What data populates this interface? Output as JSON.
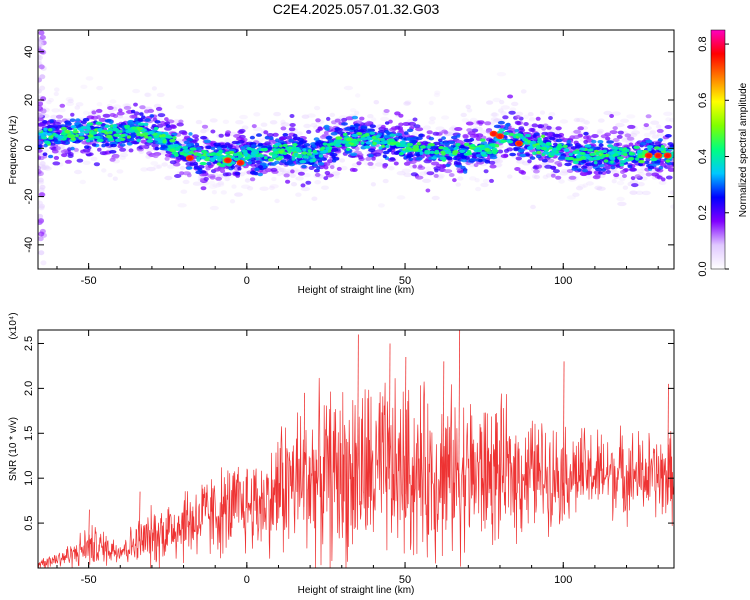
{
  "title": "C2E4.2025.057.01.32.G03",
  "chart_data": [
    {
      "type": "heatmap",
      "xlabel": "Height of straight line (km)",
      "ylabel": "Frequency (Hz)",
      "xlim": [
        -66,
        135
      ],
      "ylim": [
        -50,
        49
      ],
      "xticks": [
        -50,
        0,
        50,
        100
      ],
      "yticks": [
        40,
        20,
        0,
        -20,
        -40
      ],
      "colorbar": {
        "label": "Normalized spectral amplitude",
        "range": [
          0,
          0.85
        ],
        "ticks": [
          "0.0",
          "0.2",
          "0.4",
          "0.6",
          "0.8"
        ],
        "colors": [
          "#ffffff",
          "#e0c8ff",
          "#8000ff",
          "#0000ff",
          "#00c8ff",
          "#00ff80",
          "#80ff00",
          "#ffff00",
          "#ff8000",
          "#ff0000",
          "#ff00c0"
        ]
      },
      "ridge": {
        "x": [
          -66,
          -50,
          -40,
          -33,
          -28,
          -22,
          -15,
          -8,
          0,
          8,
          15,
          20,
          28,
          35,
          42,
          50,
          58,
          65,
          72,
          78,
          80,
          85,
          92,
          100,
          110,
          120,
          135
        ],
        "y": [
          5,
          6,
          6,
          8,
          5,
          0,
          -3,
          -4,
          -3,
          -2,
          -1,
          -3,
          2,
          4,
          3,
          1,
          -1,
          -2,
          0,
          -1,
          6,
          4,
          1,
          -2,
          -3,
          -3,
          -2
        ]
      },
      "peaks": [
        {
          "x": -18,
          "y": -4
        },
        {
          "x": -6,
          "y": -5
        },
        {
          "x": -2,
          "y": -6
        },
        {
          "x": 78,
          "y": 6
        },
        {
          "x": 80,
          "y": 5
        },
        {
          "x": 86,
          "y": 2
        },
        {
          "x": 127,
          "y": -3
        },
        {
          "x": 130,
          "y": -3
        },
        {
          "x": 133,
          "y": -3
        }
      ],
      "edge_artifact": {
        "x": -66,
        "y_range": [
          -50,
          49
        ]
      }
    },
    {
      "type": "line",
      "xlabel": "Height of straight line (km)",
      "ylabel": "SNR (10 * v/v)",
      "y_exponent_label": "(x10⁴)",
      "xlim": [
        -66,
        135
      ],
      "ylim": [
        0,
        2.65
      ],
      "xticks": [
        -50,
        0,
        50,
        100
      ],
      "yticks": [
        0.5,
        1.0,
        1.5,
        2.0,
        2.5
      ],
      "ytick_labels": [
        "0.5",
        "1.0",
        "1.5",
        "2.0",
        "2.5"
      ],
      "color": "#ee3333",
      "envelope": {
        "x": [
          -66,
          -55,
          -50,
          -40,
          -33,
          -20,
          -10,
          0,
          8,
          10,
          20,
          30,
          40,
          50,
          60,
          70,
          80,
          90,
          100,
          110,
          120,
          135
        ],
        "base": [
          0.05,
          0.15,
          0.25,
          0.2,
          0.3,
          0.5,
          0.6,
          0.7,
          0.75,
          0.9,
          1.0,
          1.05,
          1.05,
          1.05,
          1.05,
          1.05,
          1.05,
          1.05,
          1.05,
          1.05,
          1.05,
          1.0
        ],
        "amplitude": [
          0.05,
          0.15,
          0.25,
          0.15,
          0.3,
          0.45,
          0.5,
          0.55,
          0.6,
          0.8,
          0.9,
          1.0,
          1.05,
          1.0,
          0.95,
          0.9,
          0.8,
          0.65,
          0.55,
          0.5,
          0.5,
          0.5
        ]
      },
      "peaks": [
        {
          "x": -50,
          "y": 0.65
        },
        {
          "x": -34,
          "y": 0.85
        },
        {
          "x": 18,
          "y": 1.95
        },
        {
          "x": 35,
          "y": 2.6
        },
        {
          "x": 45,
          "y": 2.5
        },
        {
          "x": 50,
          "y": 2.35
        },
        {
          "x": 62,
          "y": 2.3
        },
        {
          "x": 67,
          "y": 2.65
        },
        {
          "x": 100,
          "y": 2.3
        },
        {
          "x": 133,
          "y": 2.05
        }
      ]
    }
  ]
}
